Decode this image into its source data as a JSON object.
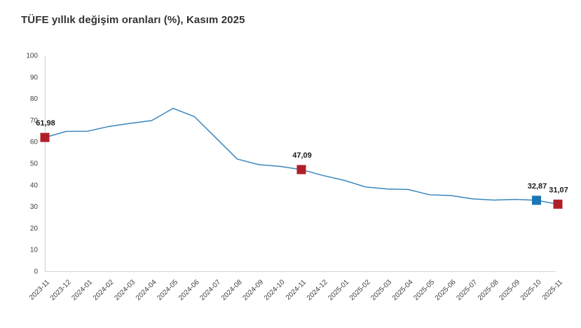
{
  "title": "TÜFE yıllık değişim oranları (%), Kasım 2025",
  "colors": {
    "background": "#ffffff",
    "title_text": "#333333",
    "axis": "#d4d4d4",
    "tick_text": "#404040",
    "line": "#3a87be",
    "marker_red": "#b01e28",
    "marker_blue": "#1d76b4",
    "label_text": "#1a1a1a"
  },
  "chart_data": {
    "type": "line",
    "title": "TÜFE yıllık değişim oranları (%), Kasım 2025",
    "xlabel": "",
    "ylabel": "",
    "ylim": [
      0,
      100
    ],
    "ytick_step": 10,
    "grid": false,
    "legend": "none",
    "x": [
      "2023-11",
      "2023-12",
      "2024-01",
      "2024-02",
      "2024-03",
      "2024-04",
      "2024-05",
      "2024-06",
      "2024-07",
      "2024-08",
      "2024-09",
      "2024-10",
      "2024-11",
      "2024-12",
      "2025-01",
      "2025-02",
      "2025-03",
      "2025-04",
      "2025-05",
      "2025-06",
      "2025-07",
      "2025-08",
      "2025-09",
      "2025-10",
      "2025-11"
    ],
    "series": [
      {
        "name": "TÜFE yıllık değişim oranı (%)",
        "values": [
          61.98,
          64.77,
          64.86,
          67.07,
          68.5,
          69.8,
          75.45,
          71.6,
          61.78,
          51.97,
          49.38,
          48.58,
          47.09,
          44.38,
          42.12,
          39.05,
          38.1,
          37.86,
          35.41,
          35.05,
          33.52,
          32.95,
          33.29,
          32.87,
          31.07
        ]
      }
    ],
    "annotations": [
      {
        "x": "2023-11",
        "label": "61,98",
        "marker": "red-square"
      },
      {
        "x": "2024-11",
        "label": "47,09",
        "marker": "red-square"
      },
      {
        "x": "2025-10",
        "label": "32,87",
        "marker": "blue-square"
      },
      {
        "x": "2025-11",
        "label": "31,07",
        "marker": "red-square"
      }
    ]
  }
}
